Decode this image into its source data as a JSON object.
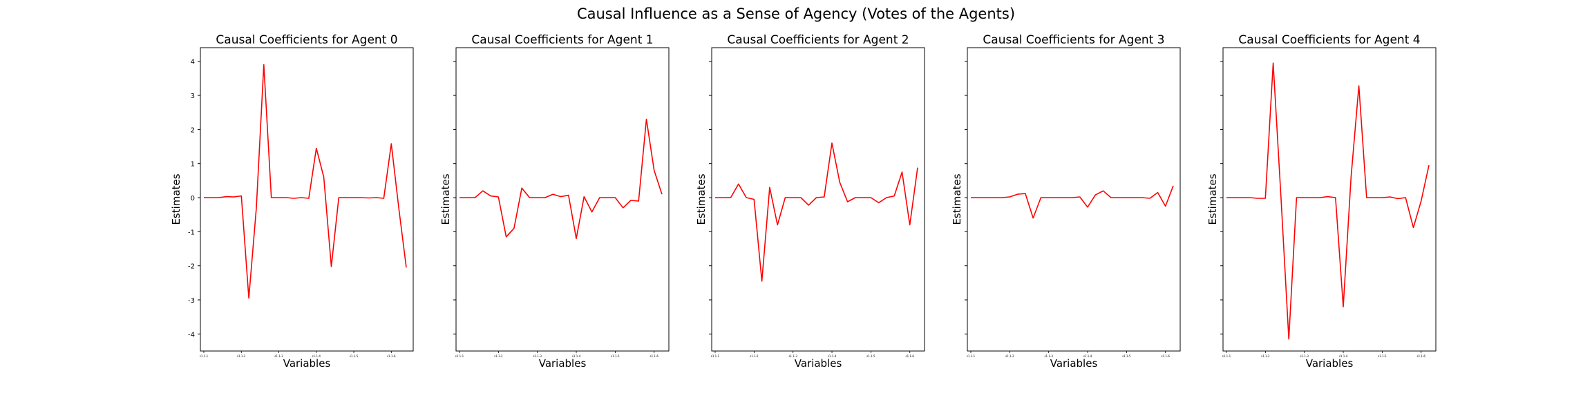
{
  "figure": {
    "title": "Causal Influence as a Sense of Agency (Votes of the Agents)"
  },
  "chart_data": [
    {
      "type": "line",
      "title": "Causal Coefficients for Agent 0",
      "xlabel": "Variables",
      "ylabel": "Estimates",
      "ylim": [
        -4.5,
        4.4
      ],
      "yticks": [
        -4,
        -3,
        -2,
        -1,
        0,
        1,
        2,
        3,
        4
      ],
      "x_tick_labels": [
        "s1.1-1",
        "s1.1-2",
        "s1.1-3",
        "s1.1-4",
        "s1.1-5",
        "s1.1-6"
      ],
      "grid": false,
      "color": "#ff0000",
      "values": [
        0,
        0,
        0,
        0.03,
        0.02,
        0.05,
        -2.95,
        -0.3,
        3.9,
        0,
        0,
        0,
        -0.02,
        0,
        -0.02,
        1.45,
        0.6,
        -2.02,
        0,
        0,
        0,
        0,
        -0.01,
        0,
        -0.02,
        1.58,
        -0.3,
        -2.05
      ]
    },
    {
      "type": "line",
      "title": "Causal Coefficients for Agent 1",
      "xlabel": "Variables",
      "ylabel": "Estimates",
      "ylim": [
        -4.5,
        4.4
      ],
      "yticks": [
        -4,
        -3,
        -2,
        -1,
        0,
        1,
        2,
        3,
        4
      ],
      "x_tick_labels": [
        "s1.1-1",
        "s1.1-2",
        "s1.1-3",
        "s1.1-4",
        "s1.1-5",
        "s1.1-6"
      ],
      "grid": false,
      "color": "#ff0000",
      "values": [
        0,
        0,
        0,
        0.2,
        0.05,
        0.02,
        -1.15,
        -0.9,
        0.28,
        0,
        0,
        0,
        0.1,
        0.03,
        0.07,
        -1.2,
        0.03,
        -0.42,
        0,
        0,
        0,
        -0.3,
        -0.08,
        -0.1,
        2.3,
        0.8,
        0.1
      ]
    },
    {
      "type": "line",
      "title": "Causal Coefficients for Agent 2",
      "xlabel": "Variables",
      "ylabel": "Estimates",
      "ylim": [
        -4.5,
        4.4
      ],
      "yticks": [
        -4,
        -3,
        -2,
        -1,
        0,
        1,
        2,
        3,
        4
      ],
      "x_tick_labels": [
        "s1.1-1",
        "s1.1-2",
        "s1.1-3",
        "s1.1-4",
        "s1.1-5",
        "s1.1-6"
      ],
      "grid": false,
      "color": "#ff0000",
      "values": [
        0,
        0,
        0,
        0.4,
        0,
        -0.05,
        -2.45,
        0.3,
        -0.8,
        0,
        0,
        0,
        -0.22,
        0,
        0.02,
        1.6,
        0.45,
        -0.12,
        0,
        0,
        0,
        -0.15,
        0,
        0.05,
        0.75,
        -0.8,
        0.88
      ]
    },
    {
      "type": "line",
      "title": "Causal Coefficients for Agent 3",
      "xlabel": "Variables",
      "ylabel": "Estimates",
      "ylim": [
        -4.5,
        4.4
      ],
      "yticks": [
        -4,
        -3,
        -2,
        -1,
        0,
        1,
        2,
        3,
        4
      ],
      "x_tick_labels": [
        "s1.1-1",
        "s1.1-2",
        "s1.1-3",
        "s1.1-4",
        "s1.1-5",
        "s1.1-6"
      ],
      "grid": false,
      "color": "#ff0000",
      "values": [
        0,
        0,
        0,
        0,
        0,
        0.02,
        0.1,
        0.12,
        -0.6,
        0,
        0,
        0,
        0,
        0,
        0.02,
        -0.28,
        0.08,
        0.2,
        0,
        0,
        0,
        0,
        0,
        -0.02,
        0.15,
        -0.25,
        0.35
      ]
    },
    {
      "type": "line",
      "title": "Causal Coefficients for Agent 4",
      "xlabel": "Variables",
      "ylabel": "Estimates",
      "ylim": [
        -4.5,
        4.4
      ],
      "yticks": [
        -4,
        -3,
        -2,
        -1,
        0,
        1,
        2,
        3,
        4
      ],
      "x_tick_labels": [
        "s1.1-1",
        "s1.1-2",
        "s1.1-3",
        "s1.1-4",
        "s1.1-5",
        "s1.1-6"
      ],
      "grid": false,
      "color": "#ff0000",
      "values": [
        0,
        0,
        0,
        0,
        -0.02,
        -0.02,
        3.95,
        0,
        -4.15,
        0,
        0,
        0,
        0,
        0.03,
        0,
        -3.2,
        0.6,
        3.28,
        0,
        0,
        0,
        0.02,
        -0.03,
        0,
        -0.88,
        -0.1,
        0.95
      ]
    }
  ]
}
